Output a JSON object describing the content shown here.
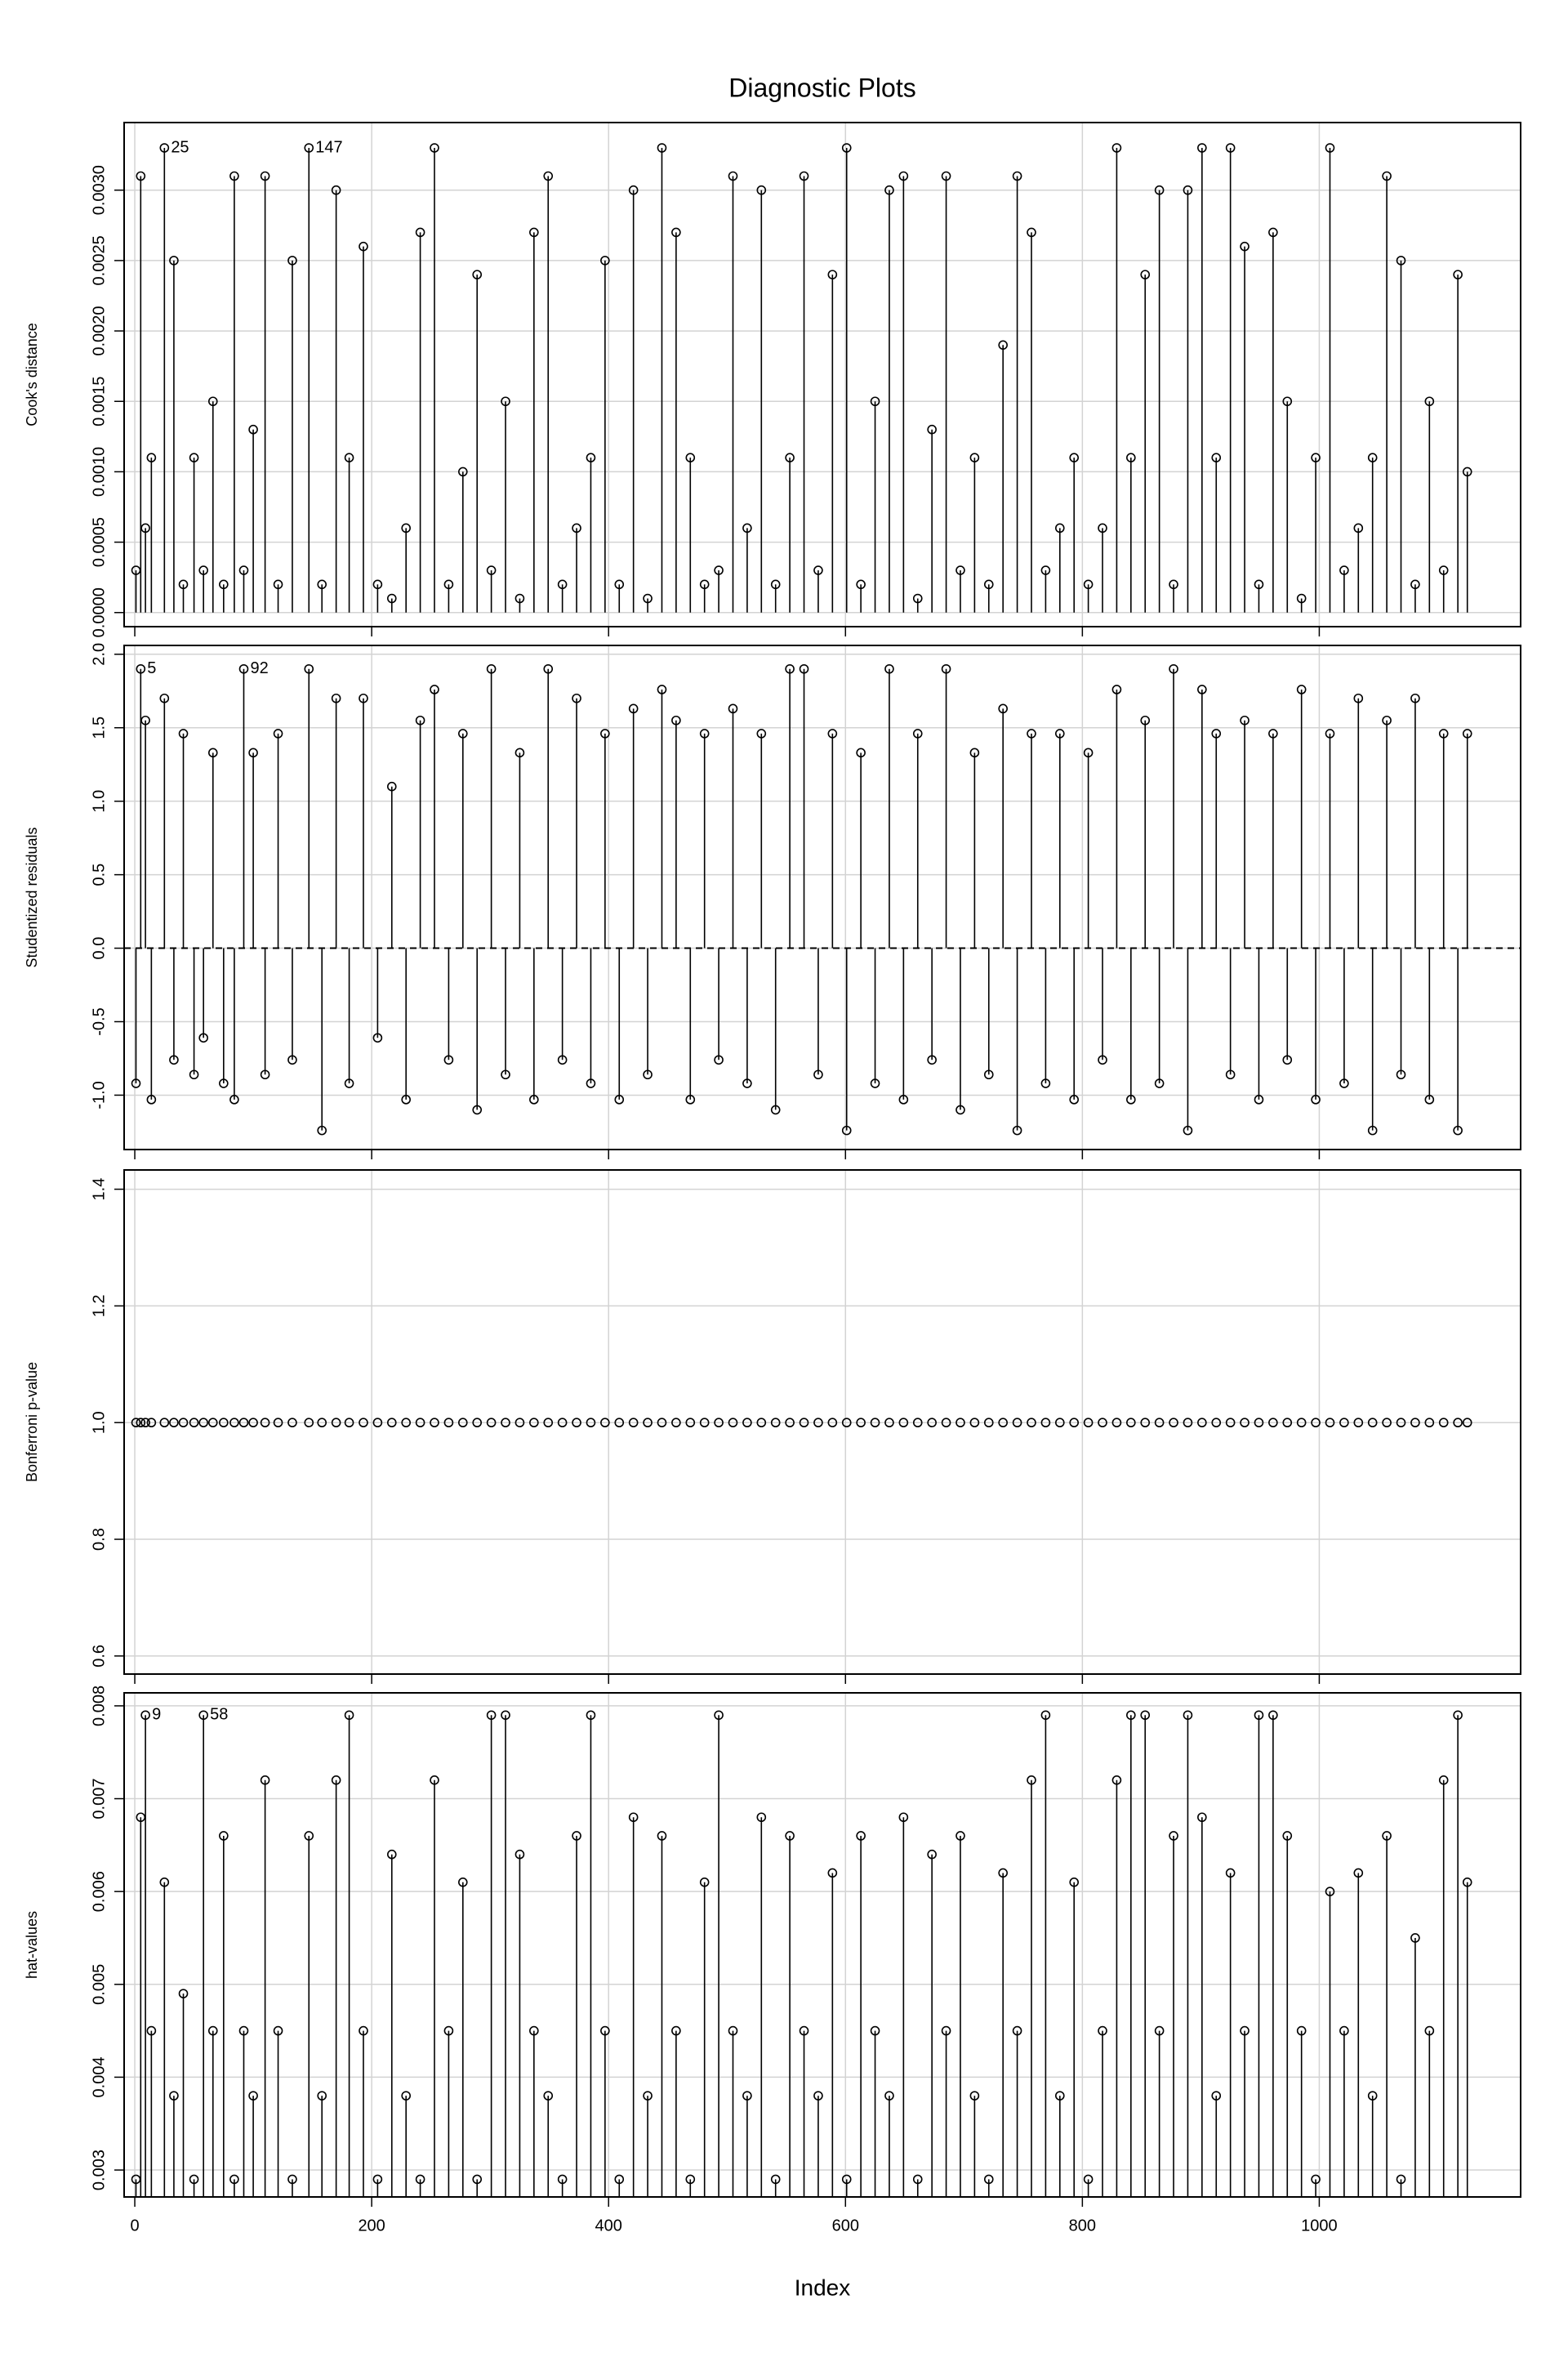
{
  "title": "Diagnostic Plots",
  "xlabel": "Index",
  "chart_data": [
    {
      "type": "stem",
      "ylabel": "Cook's distance",
      "color": "#000000",
      "grid": true,
      "stems": true,
      "show_xtick_labels": false,
      "xlim": [
        -9,
        1170
      ],
      "xticks": [
        0,
        200,
        400,
        600,
        800,
        1000
      ],
      "ylim": [
        -0.0001,
        0.00348
      ],
      "yticks": [
        {
          "value": 0,
          "label": "0.0000"
        },
        {
          "value": 0.0005,
          "label": "0.0005"
        },
        {
          "value": 0.001,
          "label": "0.0010"
        },
        {
          "value": 0.0015,
          "label": "0.0015"
        },
        {
          "value": 0.002,
          "label": "0.0020"
        },
        {
          "value": 0.0025,
          "label": "0.0025"
        },
        {
          "value": 0.003,
          "label": "0.0030"
        }
      ],
      "labeled_points": [
        25,
        147
      ],
      "x": [
        1,
        5,
        9,
        14,
        25,
        33,
        41,
        50,
        58,
        66,
        75,
        84,
        92,
        100,
        110,
        121,
        133,
        147,
        158,
        170,
        181,
        193,
        205,
        217,
        229,
        241,
        253,
        265,
        277,
        289,
        301,
        313,
        325,
        337,
        349,
        361,
        373,
        385,
        397,
        409,
        421,
        433,
        445,
        457,
        469,
        481,
        493,
        505,
        517,
        529,
        541,
        553,
        565,
        577,
        589,
        601,
        613,
        625,
        637,
        649,
        661,
        673,
        685,
        697,
        709,
        721,
        733,
        745,
        757,
        769,
        781,
        793,
        805,
        817,
        829,
        841,
        853,
        865,
        877,
        889,
        901,
        913,
        925,
        937,
        949,
        961,
        973,
        985,
        997,
        1009,
        1021,
        1033,
        1045,
        1057,
        1069,
        1081,
        1093,
        1105,
        1117,
        1125
      ],
      "values": [
        0.0003,
        0.0031,
        0.0006,
        0.0011,
        0.0033,
        0.0025,
        0.0002,
        0.0011,
        0.0003,
        0.0015,
        0.0002,
        0.0031,
        0.0003,
        0.0013,
        0.0031,
        0.0002,
        0.0025,
        0.0033,
        0.0002,
        0.003,
        0.0011,
        0.0026,
        0.0002,
        0.0001,
        0.0006,
        0.0027,
        0.0033,
        0.0002,
        0.001,
        0.0024,
        0.0003,
        0.0015,
        0.0001,
        0.0027,
        0.0031,
        0.0002,
        0.0006,
        0.0011,
        0.0025,
        0.0002,
        0.003,
        0.0001,
        0.0033,
        0.0027,
        0.0011,
        0.0002,
        0.0003,
        0.0031,
        0.0006,
        0.003,
        0.0002,
        0.0011,
        0.0031,
        0.0003,
        0.0024,
        0.0033,
        0.0002,
        0.0015,
        0.003,
        0.0031,
        0.0001,
        0.0013,
        0.0031,
        0.0003,
        0.0011,
        0.0002,
        0.0019,
        0.0031,
        0.0027,
        0.0003,
        0.0006,
        0.0011,
        0.0002,
        0.0006,
        0.0033,
        0.0011,
        0.0024,
        0.003,
        0.0002,
        0.003,
        0.0033,
        0.0011,
        0.0033,
        0.0026,
        0.0002,
        0.0027,
        0.0015,
        0.0001,
        0.0011,
        0.0033,
        0.0003,
        0.0006,
        0.0011,
        0.0031,
        0.0025,
        0.0002,
        0.0015,
        0.0003,
        0.0024,
        0.001
      ]
    },
    {
      "type": "stem",
      "ylabel": "Studentized residuals",
      "color": "#000000",
      "grid": true,
      "stems": true,
      "show_xtick_labels": false,
      "refline": 0,
      "xlim": [
        -9,
        1170
      ],
      "xticks": [
        0,
        200,
        400,
        600,
        800,
        1000
      ],
      "ylim": [
        -1.37,
        2.06
      ],
      "yticks": [
        {
          "value": -1,
          "label": "-1.0"
        },
        -0.5,
        {
          "value": 0,
          "label": "0.0"
        },
        0.5,
        {
          "value": 1,
          "label": "1.0"
        },
        1.5,
        {
          "value": 2,
          "label": "2.0"
        }
      ],
      "labeled_points": [
        5,
        92
      ],
      "x": [
        1,
        5,
        9,
        14,
        25,
        33,
        41,
        50,
        58,
        66,
        75,
        84,
        92,
        100,
        110,
        121,
        133,
        147,
        158,
        170,
        181,
        193,
        205,
        217,
        229,
        241,
        253,
        265,
        277,
        289,
        301,
        313,
        325,
        337,
        349,
        361,
        373,
        385,
        397,
        409,
        421,
        433,
        445,
        457,
        469,
        481,
        493,
        505,
        517,
        529,
        541,
        553,
        565,
        577,
        589,
        601,
        613,
        625,
        637,
        649,
        661,
        673,
        685,
        697,
        709,
        721,
        733,
        745,
        757,
        769,
        781,
        793,
        805,
        817,
        829,
        841,
        853,
        865,
        877,
        889,
        901,
        913,
        925,
        937,
        949,
        961,
        973,
        985,
        997,
        1009,
        1021,
        1033,
        1045,
        1057,
        1069,
        1081,
        1093,
        1105,
        1117,
        1125
      ],
      "values": [
        -0.92,
        1.9,
        1.55,
        -1.03,
        1.7,
        -0.76,
        1.46,
        -0.86,
        -0.61,
        1.33,
        -0.92,
        -1.03,
        1.9,
        1.33,
        -0.86,
        1.46,
        -0.76,
        1.9,
        -1.24,
        1.7,
        -0.92,
        1.7,
        -0.61,
        1.1,
        -1.03,
        1.55,
        1.76,
        -0.76,
        1.46,
        -1.1,
        1.9,
        -0.86,
        1.33,
        -1.03,
        1.9,
        -0.76,
        1.7,
        -0.92,
        1.46,
        -1.03,
        1.63,
        -0.86,
        1.76,
        1.55,
        -1.03,
        1.46,
        -0.76,
        1.63,
        -0.92,
        1.46,
        -1.1,
        1.9,
        1.9,
        -0.86,
        1.46,
        -1.24,
        1.33,
        -0.92,
        1.9,
        -1.03,
        1.46,
        -0.76,
        1.9,
        -1.1,
        1.33,
        -0.86,
        1.63,
        -1.24,
        1.46,
        -0.92,
        1.46,
        -1.03,
        1.33,
        -0.76,
        1.76,
        -1.03,
        1.55,
        -0.92,
        1.9,
        -1.24,
        1.76,
        1.46,
        -0.86,
        1.55,
        -1.03,
        1.46,
        -0.76,
        1.76,
        -1.03,
        1.46,
        -0.92,
        1.7,
        -1.24,
        1.55,
        -0.86,
        1.7,
        -1.03,
        1.46,
        -1.24,
        1.46
      ]
    },
    {
      "type": "stem",
      "ylabel": "Bonferroni p-value",
      "color": "#000000",
      "grid": true,
      "stems": false,
      "show_xtick_labels": false,
      "xlim": [
        -9,
        1170
      ],
      "xticks": [
        0,
        200,
        400,
        600,
        800,
        1000
      ],
      "ylim": [
        0.569,
        1.433
      ],
      "yticks": [
        0.6,
        0.8,
        {
          "value": 1,
          "label": "1.0"
        },
        1.2,
        1.4
      ],
      "x": [
        1,
        5,
        9,
        14,
        25,
        33,
        41,
        50,
        58,
        66,
        75,
        84,
        92,
        100,
        110,
        121,
        133,
        147,
        158,
        170,
        181,
        193,
        205,
        217,
        229,
        241,
        253,
        265,
        277,
        289,
        301,
        313,
        325,
        337,
        349,
        361,
        373,
        385,
        397,
        409,
        421,
        433,
        445,
        457,
        469,
        481,
        493,
        505,
        517,
        529,
        541,
        553,
        565,
        577,
        589,
        601,
        613,
        625,
        637,
        649,
        661,
        673,
        685,
        697,
        709,
        721,
        733,
        745,
        757,
        769,
        781,
        793,
        805,
        817,
        829,
        841,
        853,
        865,
        877,
        889,
        901,
        913,
        925,
        937,
        949,
        961,
        973,
        985,
        997,
        1009,
        1021,
        1033,
        1045,
        1057,
        1069,
        1081,
        1093,
        1105,
        1117,
        1125
      ],
      "values": [
        1,
        1,
        1,
        1,
        1,
        1,
        1,
        1,
        1,
        1,
        1,
        1,
        1,
        1,
        1,
        1,
        1,
        1,
        1,
        1,
        1,
        1,
        1,
        1,
        1,
        1,
        1,
        1,
        1,
        1,
        1,
        1,
        1,
        1,
        1,
        1,
        1,
        1,
        1,
        1,
        1,
        1,
        1,
        1,
        1,
        1,
        1,
        1,
        1,
        1,
        1,
        1,
        1,
        1,
        1,
        1,
        1,
        1,
        1,
        1,
        1,
        1,
        1,
        1,
        1,
        1,
        1,
        1,
        1,
        1,
        1,
        1,
        1,
        1,
        1,
        1,
        1,
        1,
        1,
        1,
        1,
        1,
        1,
        1,
        1,
        1,
        1,
        1,
        1,
        1,
        1,
        1,
        1,
        1,
        1,
        1,
        1,
        1,
        1,
        1
      ]
    },
    {
      "type": "stem",
      "ylabel": "hat-values",
      "color": "#000000",
      "grid": true,
      "stems": true,
      "show_xtick_labels": true,
      "xlim": [
        -9,
        1170
      ],
      "xticks": [
        0,
        200,
        400,
        600,
        800,
        1000
      ],
      "ylim": [
        0.00271,
        0.00814
      ],
      "yticks": [
        0.003,
        0.004,
        0.005,
        0.006,
        0.007,
        0.008
      ],
      "labeled_points": [
        9,
        58
      ],
      "x": [
        1,
        5,
        9,
        14,
        25,
        33,
        41,
        50,
        58,
        66,
        75,
        84,
        92,
        100,
        110,
        121,
        133,
        147,
        158,
        170,
        181,
        193,
        205,
        217,
        229,
        241,
        253,
        265,
        277,
        289,
        301,
        313,
        325,
        337,
        349,
        361,
        373,
        385,
        397,
        409,
        421,
        433,
        445,
        457,
        469,
        481,
        493,
        505,
        517,
        529,
        541,
        553,
        565,
        577,
        589,
        601,
        613,
        625,
        637,
        649,
        661,
        673,
        685,
        697,
        709,
        721,
        733,
        745,
        757,
        769,
        781,
        793,
        805,
        817,
        829,
        841,
        853,
        865,
        877,
        889,
        901,
        913,
        925,
        937,
        949,
        961,
        973,
        985,
        997,
        1009,
        1021,
        1033,
        1045,
        1057,
        1069,
        1081,
        1093,
        1105,
        1117,
        1125
      ],
      "values": [
        0.0029,
        0.0068,
        0.0079,
        0.0045,
        0.0061,
        0.0038,
        0.0049,
        0.0029,
        0.0079,
        0.0045,
        0.0066,
        0.0029,
        0.0045,
        0.0038,
        0.0072,
        0.0045,
        0.0029,
        0.0066,
        0.0038,
        0.0072,
        0.0079,
        0.0045,
        0.0029,
        0.0064,
        0.0038,
        0.0029,
        0.0072,
        0.0045,
        0.0061,
        0.0029,
        0.0079,
        0.0079,
        0.0064,
        0.0045,
        0.0038,
        0.0029,
        0.0066,
        0.0079,
        0.0045,
        0.0029,
        0.0068,
        0.0038,
        0.0066,
        0.0045,
        0.0029,
        0.0061,
        0.0079,
        0.0045,
        0.0038,
        0.0068,
        0.0029,
        0.0066,
        0.0045,
        0.0038,
        0.0062,
        0.0029,
        0.0066,
        0.0045,
        0.0038,
        0.0068,
        0.0029,
        0.0064,
        0.0045,
        0.0066,
        0.0038,
        0.0029,
        0.0062,
        0.0045,
        0.0072,
        0.0079,
        0.0038,
        0.0061,
        0.0029,
        0.0045,
        0.0072,
        0.0079,
        0.0079,
        0.0045,
        0.0066,
        0.0079,
        0.0068,
        0.0038,
        0.0062,
        0.0045,
        0.0079,
        0.0079,
        0.0066,
        0.0045,
        0.0029,
        0.006,
        0.0045,
        0.0062,
        0.0038,
        0.0066,
        0.0029,
        0.0055,
        0.0045,
        0.0072,
        0.0079,
        0.0061
      ]
    }
  ]
}
